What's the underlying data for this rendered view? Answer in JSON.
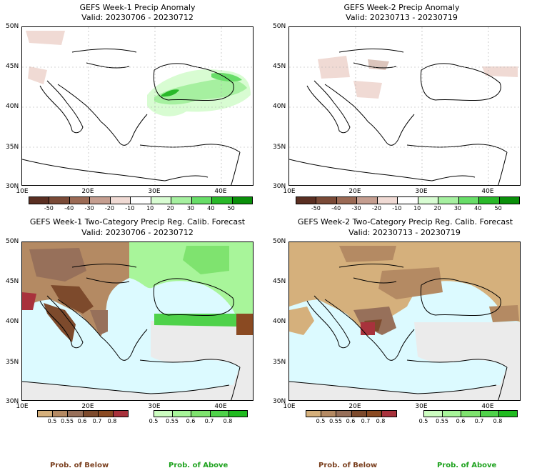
{
  "panels": [
    {
      "title": "GEFS Week-1 Precip Anomaly",
      "valid": "Valid: 20230706 - 20230712"
    },
    {
      "title": "GEFS Week-2 Precip Anomaly",
      "valid": "Valid: 20230713 - 20230719"
    },
    {
      "title": "GEFS Week-1 Two-Category Precip Reg. Calib. Forecast",
      "valid": "Valid: 20230706 - 20230712"
    },
    {
      "title": "GEFS Week-2 Two-Category Precip Reg. Calib. Forecast",
      "valid": "Valid: 20230713 - 20230719"
    }
  ],
  "lat_labels": [
    "50N",
    "45N",
    "40N",
    "35N",
    "30N"
  ],
  "lon_labels": [
    "10E",
    "20E",
    "30E",
    "40E"
  ],
  "anomaly_colorbar": {
    "labels": [
      "-50",
      "-40",
      "-30",
      "-20",
      "-10",
      "10",
      "20",
      "30",
      "40",
      "50"
    ],
    "colors": [
      "#5a2f22",
      "#7a4a37",
      "#9b6a55",
      "#c59e90",
      "#f0dad4",
      "#ffffff",
      "#d8fcd2",
      "#a6f0a0",
      "#68dd68",
      "#29b829",
      "#0a8f0a"
    ]
  },
  "below_colorbar": {
    "labels": [
      "0.5",
      "0.55",
      "0.6",
      "0.7",
      "0.8"
    ],
    "colors": [
      "#d5b07c",
      "#b48a63",
      "#97705a",
      "#7d4a2c",
      "#8a4a22",
      "#a8323c"
    ]
  },
  "above_colorbar": {
    "labels": [
      "0.5",
      "0.55",
      "0.6",
      "0.7",
      "0.8"
    ],
    "colors": [
      "#ccfcc0",
      "#a8f59a",
      "#7fe36f",
      "#4fd24a",
      "#20bb20"
    ]
  },
  "footer": {
    "below_label": "Prob. of Below",
    "above_label": "Prob. of Above",
    "below_color": "#7a3f1e",
    "above_color": "#1ea21e"
  },
  "map_colors": {
    "sea": "#dcfaff",
    "nodata": "#ebebeb",
    "coast": "#000000",
    "grid": "#aaaaaa"
  }
}
